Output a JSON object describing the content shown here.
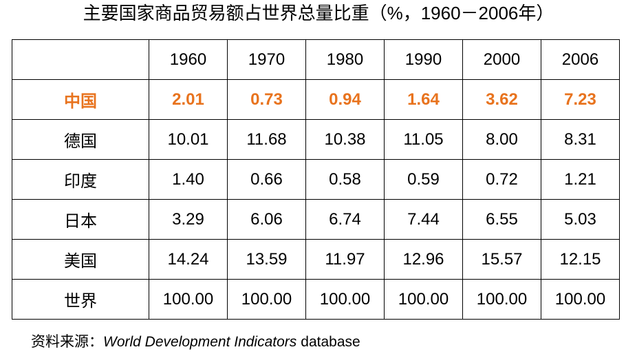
{
  "title": "主要国家商品贸易额占世界总量比重（%，1960－2006年）",
  "table": {
    "years": [
      "1960",
      "1970",
      "1980",
      "1990",
      "2000",
      "2006"
    ],
    "rows": [
      {
        "label": "中国",
        "values": [
          "2.01",
          "0.73",
          "0.94",
          "1.64",
          "3.62",
          "7.23"
        ]
      },
      {
        "label": "德国",
        "values": [
          "10.01",
          "11.68",
          "10.38",
          "11.05",
          "8.00",
          "8.31"
        ]
      },
      {
        "label": "印度",
        "values": [
          "1.40",
          "0.66",
          "0.58",
          "0.59",
          "0.72",
          "1.21"
        ]
      },
      {
        "label": "日本",
        "values": [
          "3.29",
          "6.06",
          "6.74",
          "7.44",
          "6.55",
          "5.03"
        ]
      },
      {
        "label": "美国",
        "values": [
          "14.24",
          "13.59",
          "11.97",
          "12.96",
          "15.57",
          "12.15"
        ]
      },
      {
        "label": "世界",
        "values": [
          "100.00",
          "100.00",
          "100.00",
          "100.00",
          "100.00",
          "100.00"
        ]
      }
    ]
  },
  "source": {
    "prefix": "资料来源：",
    "italic": "World Development Indicators",
    "suffix": "database"
  }
}
